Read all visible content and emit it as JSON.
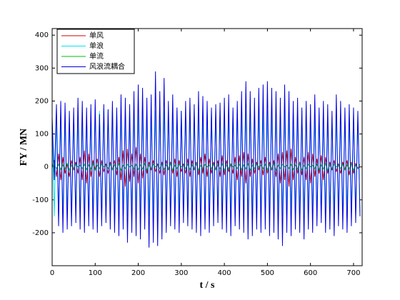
{
  "chart_data": {
    "type": "line",
    "xlabel": "t / s",
    "ylabel": "FY / MN",
    "xlim": [
      0,
      720
    ],
    "ylim": [
      -300,
      420
    ],
    "xticks": [
      0,
      100,
      200,
      300,
      400,
      500,
      600,
      700
    ],
    "yticks": [
      -200,
      -100,
      0,
      100,
      200,
      300,
      400
    ],
    "legend": "upper left",
    "x": [
      0,
      5,
      10,
      15,
      20,
      25,
      30,
      35,
      40,
      45,
      50,
      55,
      60,
      65,
      70,
      75,
      80,
      85,
      90,
      95,
      100,
      105,
      110,
      115,
      120,
      125,
      130,
      135,
      140,
      145,
      150,
      155,
      160,
      165,
      170,
      175,
      180,
      185,
      190,
      195,
      200,
      205,
      210,
      215,
      220,
      225,
      230,
      235,
      240,
      245,
      250,
      255,
      260,
      265,
      270,
      275,
      280,
      285,
      290,
      295,
      300,
      305,
      310,
      315,
      320,
      325,
      330,
      335,
      340,
      345,
      350,
      355,
      360,
      365,
      370,
      375,
      380,
      385,
      390,
      395,
      400,
      405,
      410,
      415,
      420,
      425,
      430,
      435,
      440,
      445,
      450,
      455,
      460,
      465,
      470,
      475,
      480,
      485,
      490,
      495,
      500,
      505,
      510,
      515,
      520,
      525,
      530,
      535,
      540,
      545,
      550,
      555,
      560,
      565,
      570,
      575,
      580,
      585,
      590,
      595,
      600,
      605,
      610,
      615,
      620,
      625,
      630,
      635,
      640,
      645,
      650,
      655,
      660,
      665,
      670,
      675,
      680,
      685,
      690,
      695,
      700,
      705,
      710,
      715
    ],
    "series": [
      {
        "name": "单风",
        "color": "#d00000",
        "values": [
          0,
          20,
          -30,
          40,
          -40,
          30,
          -20,
          10,
          -30,
          20,
          -10,
          15,
          -20,
          30,
          -40,
          50,
          -50,
          40,
          -30,
          20,
          -10,
          25,
          -30,
          20,
          -15,
          10,
          -20,
          15,
          -10,
          20,
          -25,
          30,
          -40,
          50,
          -60,
          55,
          -45,
          40,
          -30,
          60,
          -50,
          40,
          -35,
          30,
          -20,
          15,
          -10,
          20,
          -15,
          10,
          -20,
          15,
          -25,
          20,
          -10,
          15,
          -20,
          25,
          -30,
          20,
          -15,
          10,
          -20,
          25,
          -30,
          20,
          -10,
          15,
          -25,
          30,
          -20,
          40,
          -30,
          25,
          -20,
          15,
          -10,
          20,
          -30,
          35,
          -25,
          20,
          -15,
          10,
          -20,
          30,
          -40,
          35,
          -30,
          45,
          -50,
          40,
          -30,
          25,
          -20,
          15,
          -10,
          20,
          -25,
          30,
          -20,
          15,
          -10,
          20,
          -30,
          40,
          -50,
          45,
          -40,
          50,
          -60,
          55,
          -40,
          30,
          -20,
          15,
          -25,
          30,
          -40,
          45,
          -50,
          40,
          -30,
          25,
          -20,
          35,
          -40,
          30,
          -20,
          15,
          -10,
          20,
          -15,
          10,
          -20,
          15,
          -10,
          20,
          -25,
          15,
          -20,
          10,
          -5,
          0
        ]
      },
      {
        "name": "单浪",
        "color": "#00e5ee",
        "values": [
          150,
          -150,
          150,
          -150,
          150,
          -150,
          150,
          -150,
          150,
          -150,
          150,
          -150,
          150,
          -150,
          150,
          -150,
          150,
          -150,
          150,
          -150,
          170,
          -150,
          170,
          -150,
          170,
          -150,
          170,
          -150,
          170,
          -150,
          170,
          -150,
          170,
          -150,
          170,
          -150,
          170,
          -150,
          170,
          -150,
          170,
          -150,
          170,
          -150,
          170,
          -150,
          170,
          -150,
          170,
          -150,
          170,
          -150,
          170,
          -150,
          170,
          -150,
          170,
          -150,
          170,
          -150,
          170,
          -150,
          170,
          -150,
          170,
          -150,
          170,
          -150,
          170,
          -150,
          170,
          -150,
          170,
          -150,
          170,
          -150,
          170,
          -150,
          170,
          -150,
          170,
          -150,
          170,
          -150,
          170,
          -150,
          170,
          -150,
          170,
          -150,
          170,
          -150,
          170,
          -150,
          170,
          -150,
          170,
          -150,
          170,
          -150,
          170,
          -150,
          170,
          -150,
          170,
          -150,
          170,
          -150,
          170,
          -150,
          170,
          -150,
          170,
          -150,
          170,
          -150,
          170,
          -150,
          170,
          -150,
          150,
          -140,
          150,
          -140,
          150,
          -140,
          150,
          -140,
          150,
          -140,
          150,
          -140,
          150,
          -140,
          150,
          -140,
          150,
          -140,
          150,
          -140,
          150,
          -140,
          150,
          -140
        ]
      },
      {
        "name": "单流",
        "color": "#00c000",
        "values": [
          0,
          5,
          -5,
          8,
          -8,
          6,
          -6,
          10,
          -10,
          5,
          -5,
          8,
          0,
          5,
          -5,
          8,
          -8,
          6,
          -6,
          10,
          -10,
          5,
          -5,
          8,
          0,
          5,
          -5,
          8,
          -8,
          6,
          -6,
          10,
          -10,
          5,
          -5,
          8,
          0,
          5,
          -5,
          8,
          -8,
          6,
          -6,
          10,
          -10,
          5,
          -5,
          8,
          0,
          5,
          -5,
          8,
          -8,
          6,
          -6,
          10,
          -10,
          5,
          -5,
          8,
          0,
          5,
          -5,
          8,
          -8,
          6,
          -6,
          10,
          -10,
          5,
          -5,
          8,
          0,
          5,
          -5,
          8,
          -8,
          6,
          -6,
          10,
          -10,
          5,
          -5,
          8,
          0,
          5,
          -5,
          8,
          -8,
          6,
          -6,
          10,
          -10,
          5,
          -5,
          8,
          0,
          5,
          -5,
          8,
          -8,
          6,
          -6,
          10,
          -10,
          5,
          -5,
          8,
          0,
          5,
          -5,
          8,
          -8,
          6,
          -6,
          10,
          -10,
          5,
          -5,
          8,
          0,
          5,
          -5,
          8,
          -8,
          6,
          -6,
          10,
          -10,
          5,
          -5,
          8,
          0,
          5,
          -5,
          8,
          -8,
          6,
          -6,
          10,
          -10,
          5,
          -5,
          8
        ]
      },
      {
        "name": "风浪流耦合",
        "color": "#0000e0",
        "values": [
          150,
          -40,
          190,
          -180,
          200,
          -200,
          195,
          -190,
          170,
          -180,
          180,
          -170,
          210,
          -190,
          200,
          -200,
          180,
          -180,
          190,
          -190,
          205,
          -200,
          160,
          -180,
          190,
          -170,
          175,
          -190,
          200,
          -200,
          180,
          -210,
          220,
          -190,
          210,
          -230,
          190,
          -200,
          230,
          -210,
          250,
          -220,
          240,
          -190,
          210,
          -245,
          220,
          -230,
          290,
          -240,
          230,
          -220,
          270,
          -200,
          200,
          -180,
          220,
          -190,
          180,
          -200,
          170,
          -170,
          200,
          -180,
          210,
          -190,
          190,
          -200,
          230,
          -210,
          215,
          -190,
          200,
          -200,
          180,
          -180,
          190,
          -170,
          195,
          -190,
          210,
          -200,
          220,
          -210,
          180,
          -180,
          200,
          -190,
          230,
          -200,
          260,
          -220,
          230,
          -210,
          210,
          -190,
          240,
          -200,
          250,
          -190,
          260,
          -210,
          240,
          -200,
          230,
          -220,
          210,
          -240,
          250,
          -200,
          230,
          -210,
          200,
          -190,
          210,
          -200,
          180,
          -220,
          200,
          -190,
          190,
          -200,
          220,
          -180,
          180,
          -170,
          200,
          -200,
          190,
          -190,
          170,
          -210,
          220,
          -180,
          200,
          -190,
          180,
          -200,
          190,
          -180,
          180,
          -170,
          170,
          -150
        ]
      }
    ]
  }
}
